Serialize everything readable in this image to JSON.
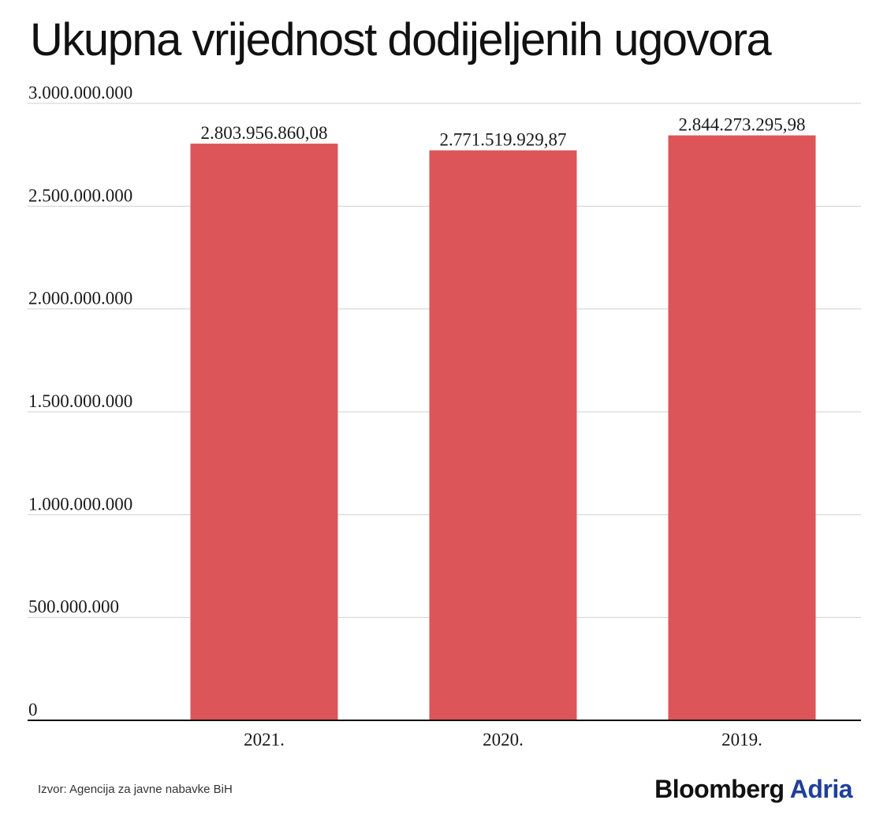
{
  "title": "Ukupna vrijednost dodijeljenih ugovora",
  "source": "Izvor: Agencija za javne nabavke BiH",
  "brand": {
    "part1": "Bloomberg",
    "part2": "Adria"
  },
  "colors": {
    "bar": "#dc5558",
    "grid": "#d0d0d0",
    "axis": "#111111",
    "brand_accent": "#1f3f99"
  },
  "chart_data": {
    "type": "bar",
    "title": "Ukupna vrijednost dodijeljenih ugovora",
    "xlabel": "",
    "ylabel": "",
    "categories": [
      "2021.",
      "2020.",
      "2019."
    ],
    "values": [
      2803956860.08,
      2771519929.87,
      2844273295.98
    ],
    "value_labels": [
      "2.803.956.860,08",
      "2.771.519.929,87",
      "2.844.273.295,98"
    ],
    "ylim": [
      0,
      3000000000
    ],
    "yticks": [
      0,
      500000000,
      1000000000,
      1500000000,
      2000000000,
      2500000000,
      3000000000
    ],
    "ytick_labels": [
      "0",
      "500.000.000",
      "1.000.000.000",
      "1.500.000.000",
      "2.000.000.000",
      "2.500.000.000",
      "3.000.000.000"
    ],
    "grid": true,
    "legend": "none"
  }
}
